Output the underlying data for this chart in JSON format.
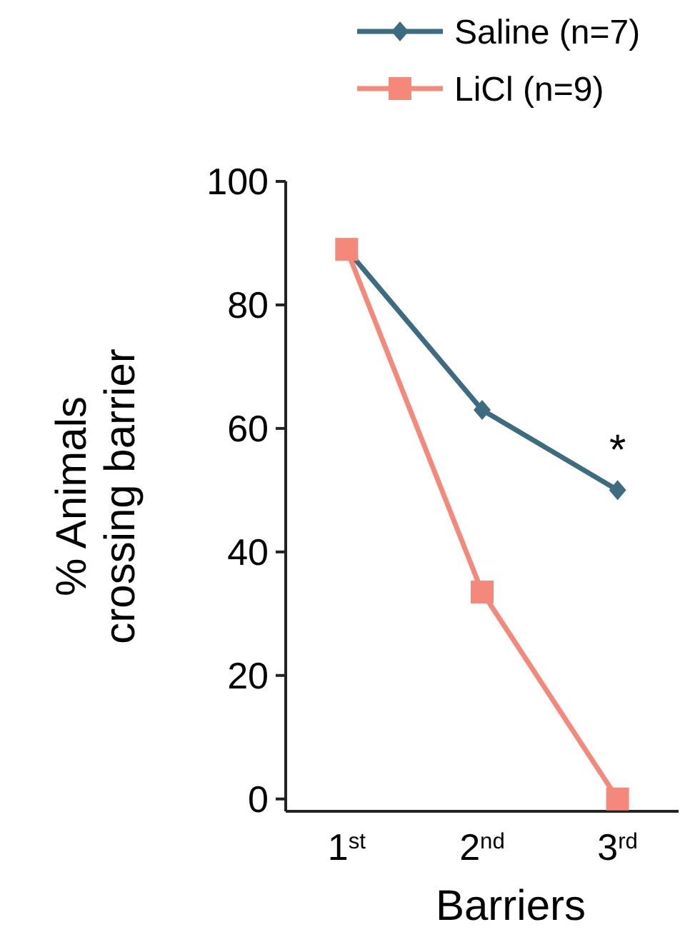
{
  "chart_data": {
    "type": "line",
    "xlabel": "Barriers",
    "ylabel": "% Animals\ncrossing barrier",
    "categories": [
      "1$^{st}$",
      "2$^{nd}$",
      "3$^{rd}$"
    ],
    "series": [
      {
        "name": "Saline (n=7)",
        "color": "#3d6b80",
        "values": [
          89,
          63,
          50
        ],
        "marker": "diamond"
      },
      {
        "name": "LiCl (n=9)",
        "color": "#f4897b",
        "values": [
          89,
          33.5,
          0
        ],
        "marker": "square"
      }
    ],
    "ylim": [
      -2,
      100
    ],
    "yticks": [
      0,
      20,
      40,
      60,
      80,
      100
    ],
    "legend": "top right",
    "grid": false,
    "annotations": [
      "*"
    ]
  }
}
